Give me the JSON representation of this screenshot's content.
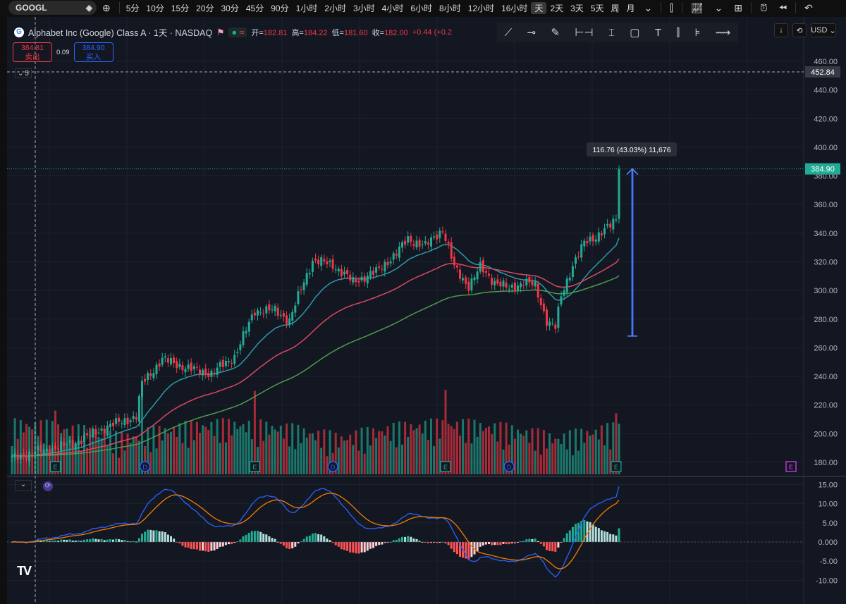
{
  "toolbar": {
    "symbol": "GOOGL",
    "intervals": [
      "5分",
      "10分",
      "15分",
      "20分",
      "30分",
      "45分",
      "90分",
      "1小时",
      "2小时",
      "3小时",
      "4小时",
      "6小时",
      "8小时",
      "12小时",
      "16小时",
      "天",
      "2天",
      "3天",
      "5天",
      "周",
      "月"
    ],
    "active_interval": "天",
    "icons": [
      "candles-icon",
      "indicators-icon",
      "layout-icon",
      "alert-icon",
      "replay-icon",
      "undo-icon"
    ]
  },
  "legend": {
    "title": "Alphabet Inc (Google) Class A · 1天 · NASDAQ",
    "open_label": "开=",
    "open": "182.81",
    "high_label": "高=",
    "high": "184.22",
    "low_label": "低=",
    "low": "181.60",
    "close_label": "收=",
    "close": "182.00",
    "change": "+0.44 (+0.2",
    "sell_price": "384.81",
    "sell_label": "卖出",
    "spread": "0.09",
    "buy_price": "384.90",
    "buy_label": "买入",
    "collapse_count": "5"
  },
  "drawing_tools": [
    "trend-line",
    "horizontal-ray",
    "brush",
    "date-range",
    "price-range",
    "rectangle",
    "text",
    "long-position",
    "anchored-vwap",
    "path"
  ],
  "right_controls": {
    "currency": "USD"
  },
  "measure": {
    "label": "116.76 (43.03%) 11,676",
    "from": 268.14,
    "to": 384.9
  },
  "colors": {
    "up": "#22ab94",
    "down": "#f23645",
    "ma1": "#2a9aa8",
    "ma2": "#d9485f",
    "ma3": "#4e9a4e",
    "macd": "#2962ff",
    "signal": "#f57c00",
    "measure": "#2962ff",
    "bg": "#131722"
  },
  "chart_data": {
    "type": "candlestick",
    "symbol": "GOOGL",
    "price_axis": {
      "ticks": [
        "460.00",
        "440.00",
        "420.00",
        "400.00",
        "380.00",
        "360.00",
        "340.00",
        "320.00",
        "300.00",
        "280.00",
        "260.00",
        "240.00",
        "220.00",
        "200.00",
        "180.00"
      ],
      "ylim": [
        172,
        466
      ]
    },
    "price_labels": {
      "last": "384.90",
      "crosshair": "452.84"
    },
    "key_closes": [
      [
        0,
        183
      ],
      [
        21,
        193
      ],
      [
        33,
        205
      ],
      [
        43,
        212
      ],
      [
        45,
        235
      ],
      [
        52,
        252
      ],
      [
        62,
        245
      ],
      [
        69,
        242
      ],
      [
        77,
        254
      ],
      [
        84,
        286
      ],
      [
        91,
        286
      ],
      [
        96,
        279
      ],
      [
        100,
        301
      ],
      [
        104,
        321
      ],
      [
        111,
        318
      ],
      [
        118,
        306
      ],
      [
        126,
        313
      ],
      [
        133,
        326
      ],
      [
        137,
        336
      ],
      [
        143,
        331
      ],
      [
        149,
        343
      ],
      [
        153,
        316
      ],
      [
        158,
        303
      ],
      [
        162,
        316
      ],
      [
        167,
        306
      ],
      [
        172,
        301
      ],
      [
        177,
        306
      ],
      [
        181,
        303
      ],
      [
        185,
        279
      ],
      [
        188,
        274
      ],
      [
        190,
        296
      ],
      [
        194,
        318
      ],
      [
        198,
        333
      ],
      [
        202,
        338
      ],
      [
        207,
        345
      ],
      [
        209,
        350
      ],
      [
        210,
        384.9
      ]
    ],
    "events": [
      {
        "i": 15,
        "t": "E"
      },
      {
        "i": 46,
        "t": "D"
      },
      {
        "i": 84,
        "t": "E"
      },
      {
        "i": 111,
        "t": "D"
      },
      {
        "i": 150,
        "t": "E"
      },
      {
        "i": 172,
        "t": "D"
      },
      {
        "i": 209,
        "t": "E"
      },
      {
        "i": "future",
        "t": "E"
      }
    ],
    "macd_axis": {
      "ticks": [
        "15.00",
        "10.00",
        "5.00",
        "0.000",
        "-5.00",
        "-10.00"
      ],
      "ylim": [
        -11.5,
        18
      ]
    }
  }
}
